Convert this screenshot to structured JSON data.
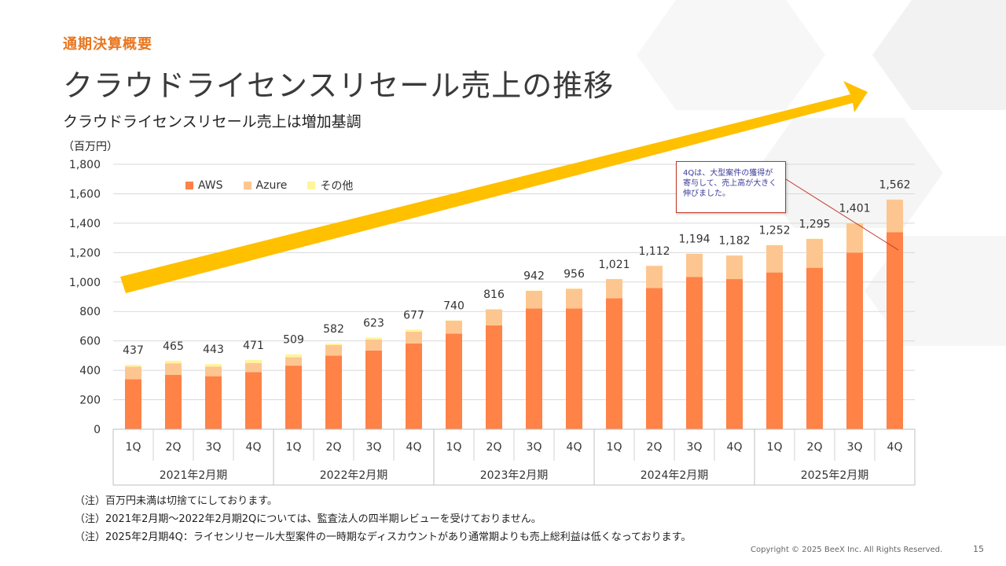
{
  "section_label": "通期決算概要",
  "title": "クラウドライセンスリセール売上の推移",
  "subtitle": "クラウドライセンスリセール売上は増加基調",
  "unit": "（百万円）",
  "callout_text": "4Qは、大型案件の獲得が寄与して、売上高が大きく伸びました。",
  "notes": [
    "（注）百万円未満は切捨てにしております。",
    "（注）2021年2月期～2022年2月期2Qについては、監査法人の四半期レビューを受けておりません。",
    "（注）2025年2月期4Q：ライセンリセール大型案件の一時期なディスカウントがあり通常期よりも売上総利益は低くなっております。"
  ],
  "copyright": "Copyright © 2025  BeeX Inc. All Rights Reserved.",
  "page_number": "15",
  "colors": {
    "aws": "#ff8247",
    "azure": "#fdc690",
    "other": "#fff59a",
    "accent_orange": "#e8761f",
    "arrow": "#ffc000",
    "grid": "#d9d9d9"
  },
  "chart_data": {
    "type": "bar",
    "stacked": true,
    "ylim": [
      0,
      1800
    ],
    "yticks": [
      "0",
      "200",
      "400",
      "600",
      "800",
      "1,000",
      "1,200",
      "1,400",
      "1,600",
      "1,800"
    ],
    "grid": true,
    "legend_position": "top-left",
    "categories": [
      "1Q",
      "2Q",
      "3Q",
      "4Q",
      "1Q",
      "2Q",
      "3Q",
      "4Q",
      "1Q",
      "2Q",
      "3Q",
      "4Q",
      "1Q",
      "2Q",
      "3Q",
      "4Q",
      "1Q",
      "2Q",
      "3Q",
      "4Q"
    ],
    "groups": [
      "2021年2月期",
      "2022年2月期",
      "2023年2月期",
      "2024年2月期",
      "2025年2月期"
    ],
    "series": [
      {
        "name": "AWS",
        "values": [
          340,
          370,
          360,
          388,
          432,
          500,
          535,
          583,
          650,
          706,
          820,
          820,
          890,
          960,
          1035,
          1020,
          1065,
          1097,
          1200,
          1338
        ]
      },
      {
        "name": "Azure",
        "values": [
          85,
          78,
          66,
          62,
          58,
          72,
          75,
          80,
          88,
          108,
          120,
          134,
          130,
          150,
          157,
          160,
          185,
          196,
          199,
          222
        ]
      },
      {
        "name": "その他",
        "values": [
          12,
          17,
          17,
          21,
          19,
          10,
          13,
          14,
          2,
          2,
          2,
          2,
          1,
          2,
          2,
          2,
          2,
          2,
          2,
          2
        ]
      }
    ],
    "totals": [
      "437",
      "465",
      "443",
      "471",
      "509",
      "582",
      "623",
      "677",
      "740",
      "816",
      "942",
      "956",
      "1,021",
      "1,112",
      "1,194",
      "1,182",
      "1,252",
      "1,295",
      "1,401",
      "1,562"
    ]
  }
}
